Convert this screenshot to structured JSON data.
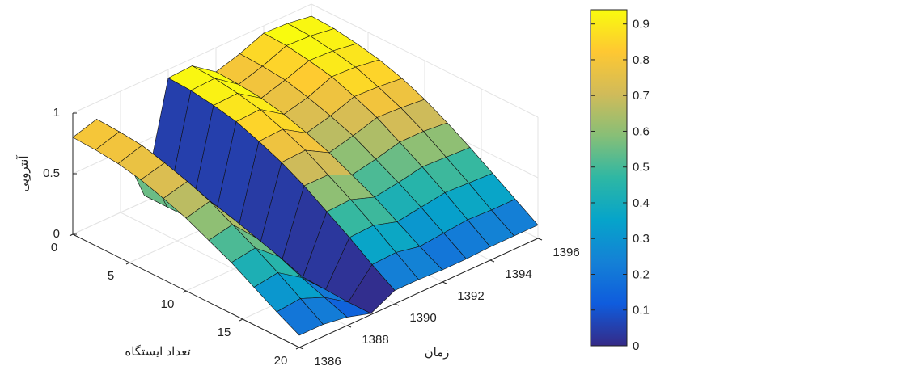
{
  "chart_data": {
    "type": "surface",
    "xlabel": "زمان",
    "ylabel": "تعداد ایستگاه",
    "zlabel": "آنتروپی",
    "x": [
      1386,
      1387,
      1388,
      1389,
      1390,
      1391,
      1392,
      1393,
      1394,
      1395,
      1396
    ],
    "y": [
      0,
      2,
      4,
      6,
      8,
      10,
      12,
      14,
      16,
      18,
      20
    ],
    "z": [
      [
        0.8,
        0.86,
        0.55,
        0.05,
        0.93,
        0.94,
        0.8,
        0.86,
        0.94,
        0.93,
        0.9
      ],
      [
        0.79,
        0.85,
        0.54,
        0.05,
        0.92,
        0.93,
        0.79,
        0.85,
        0.93,
        0.92,
        0.89
      ],
      [
        0.77,
        0.83,
        0.53,
        0.05,
        0.89,
        0.9,
        0.77,
        0.83,
        0.9,
        0.89,
        0.86
      ],
      [
        0.73,
        0.78,
        0.5,
        0.05,
        0.85,
        0.86,
        0.73,
        0.78,
        0.86,
        0.85,
        0.82
      ],
      [
        0.67,
        0.72,
        0.46,
        0.04,
        0.78,
        0.79,
        0.67,
        0.72,
        0.79,
        0.78,
        0.76
      ],
      [
        0.6,
        0.65,
        0.41,
        0.04,
        0.7,
        0.71,
        0.6,
        0.65,
        0.71,
        0.7,
        0.68
      ],
      [
        0.51,
        0.55,
        0.35,
        0.03,
        0.6,
        0.6,
        0.51,
        0.55,
        0.6,
        0.6,
        0.58
      ],
      [
        0.42,
        0.45,
        0.29,
        0.03,
        0.48,
        0.49,
        0.42,
        0.45,
        0.49,
        0.48,
        0.47
      ],
      [
        0.31,
        0.34,
        0.21,
        0.02,
        0.36,
        0.37,
        0.31,
        0.34,
        0.37,
        0.36,
        0.35
      ],
      [
        0.2,
        0.22,
        0.14,
        0.01,
        0.23,
        0.24,
        0.2,
        0.22,
        0.24,
        0.23,
        0.23
      ],
      [
        0.1,
        0.1,
        0.07,
        0.01,
        0.11,
        0.11,
        0.1,
        0.1,
        0.11,
        0.11,
        0.11
      ]
    ],
    "xlim": [
      1386,
      1396
    ],
    "xticks": [
      1386,
      1388,
      1390,
      1392,
      1394,
      1396
    ],
    "ylim": [
      0,
      20
    ],
    "yticks": [
      0,
      5,
      10,
      15,
      20
    ],
    "zlim": [
      0,
      1
    ],
    "zticks": [
      0,
      0.5,
      1
    ],
    "colormap": "parula",
    "clim": [
      0,
      0.94
    ],
    "cticks": [
      0,
      0.1,
      0.2,
      0.3,
      0.4,
      0.5,
      0.6,
      0.7,
      0.8,
      0.9
    ],
    "grid": true
  }
}
